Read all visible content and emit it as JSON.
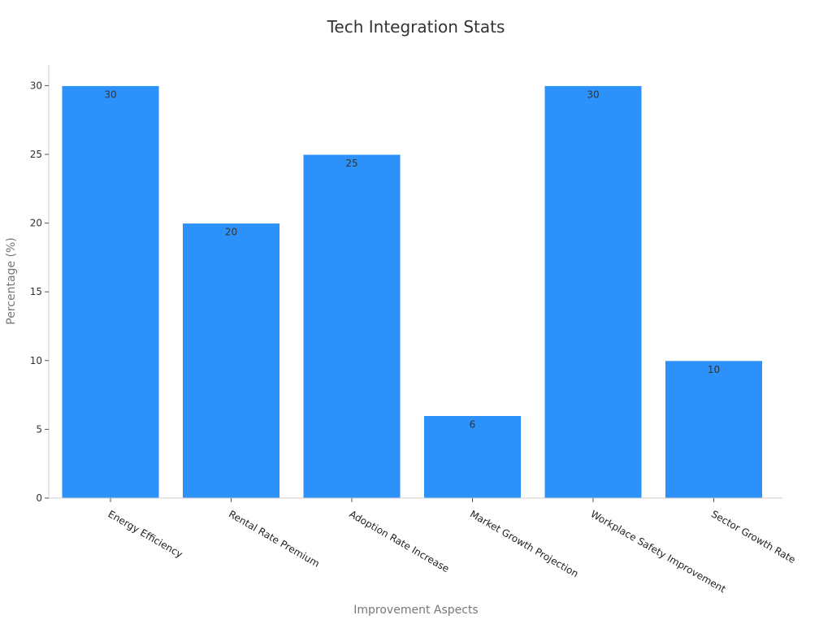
{
  "chart_data": {
    "type": "bar",
    "title": "Tech Integration Stats",
    "xlabel": "Improvement Aspects",
    "ylabel": "Percentage (%)",
    "categories": [
      "Energy Efficiency",
      "Rental Rate Premium",
      "Adoption Rate Increase",
      "Market Growth Projection",
      "Workplace Safety Improvement",
      "Sector Growth Rate"
    ],
    "values": [
      30,
      20,
      25,
      6,
      30,
      10
    ],
    "data_labels": [
      "30",
      "20",
      "25",
      "6",
      "30",
      "10"
    ],
    "yticks": [
      0,
      5,
      10,
      15,
      20,
      25,
      30
    ],
    "ytick_labels": [
      "0",
      "5",
      "10",
      "15",
      "20",
      "25",
      "30"
    ],
    "ylim": [
      0,
      31.5
    ],
    "grid": false,
    "legend": "none",
    "colors": {
      "bar": "#2c91f8",
      "bar_edge": "#ffffff",
      "axis": "#cccccc",
      "title": "#333333",
      "axis_title": "#777777",
      "label": "#333333"
    }
  }
}
